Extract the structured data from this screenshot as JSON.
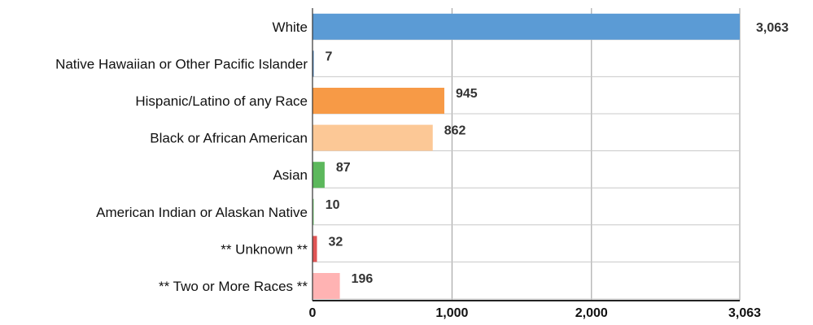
{
  "chart_data": {
    "type": "bar",
    "orientation": "horizontal",
    "title": "",
    "xlabel": "",
    "ylabel": "",
    "categories": [
      "White",
      "Native Hawaiian or Other Pacific Islander",
      "Hispanic/Latino of any Race",
      "Black or African American",
      "Asian",
      "American Indian or Alaskan Native",
      "** Unknown **",
      "** Two or More Races **"
    ],
    "values": [
      3063,
      7,
      945,
      862,
      87,
      10,
      32,
      196
    ],
    "value_labels": [
      "3,063",
      "7",
      "945",
      "862",
      "87",
      "10",
      "32",
      "196"
    ],
    "colors": [
      "#5b9bd5",
      "#4a7fb5",
      "#f79a46",
      "#fcc896",
      "#5cb85c",
      "#98d998",
      "#e05555",
      "#ffb3b3"
    ],
    "xlim": [
      0,
      3063
    ],
    "x_ticks": [
      0,
      1000,
      2000,
      3063
    ],
    "x_tick_labels": [
      "0",
      "1,000",
      "2,000",
      "3,063"
    ],
    "grid": true,
    "legend": "none"
  }
}
